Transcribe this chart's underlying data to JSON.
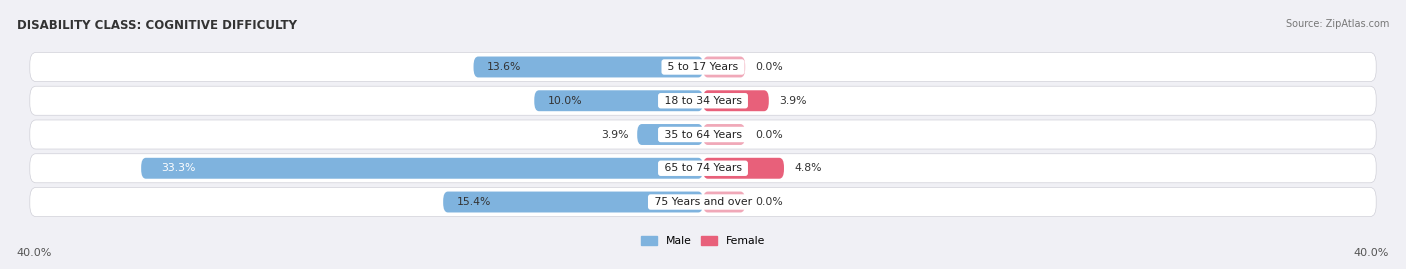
{
  "title": "DISABILITY CLASS: COGNITIVE DIFFICULTY",
  "source": "Source: ZipAtlas.com",
  "categories": [
    "5 to 17 Years",
    "18 to 34 Years",
    "35 to 64 Years",
    "65 to 74 Years",
    "75 Years and over"
  ],
  "male_values": [
    13.6,
    10.0,
    3.9,
    33.3,
    15.4
  ],
  "female_values": [
    0.0,
    3.9,
    0.0,
    4.8,
    0.0
  ],
  "male_color": "#7fb3de",
  "female_color_strong": "#e8607a",
  "female_color_light": "#f0a8b8",
  "bar_bg_color": "#e8e8ef",
  "row_bg_color": "#ededf2",
  "xlim": 40.0,
  "bar_height": 0.62,
  "title_fontsize": 8.5,
  "label_fontsize": 7.8,
  "value_fontsize": 7.8,
  "axis_label_fontsize": 8,
  "background_color": "#f0f0f5"
}
